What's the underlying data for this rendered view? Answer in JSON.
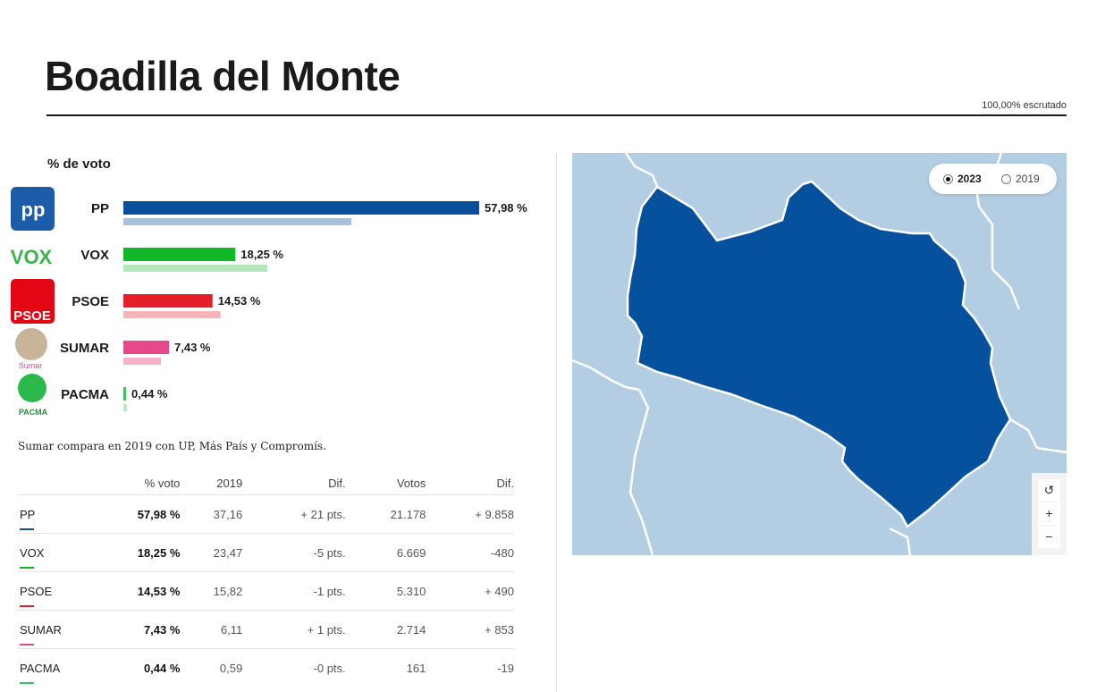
{
  "header": {
    "title": "Boadilla del Monte",
    "scrutiny": "100,00% escrutado"
  },
  "chart_data": {
    "type": "bar",
    "title": "% de voto",
    "categories": [
      "PP",
      "VOX",
      "PSOE",
      "SUMAR",
      "PACMA"
    ],
    "series": [
      {
        "name": "2023",
        "values": [
          57.98,
          18.25,
          14.53,
          7.43,
          0.44
        ]
      },
      {
        "name": "2019",
        "values": [
          37.16,
          23.47,
          15.82,
          6.11,
          0.59
        ]
      }
    ],
    "value_labels": [
      "57,98 %",
      "18,25 %",
      "14,53 %",
      "7,43 %",
      "0,44 %"
    ],
    "colors": [
      "#0b4f9c",
      "#11b92a",
      "#e41e2b",
      "#e7478b",
      "#3fc15a"
    ],
    "colors_2019": [
      "#a9c0dd",
      "#b4e8bb",
      "#f5b4b8",
      "#f4b2cd",
      "#b8ecc2"
    ],
    "logos": {
      "PP": "pp-logo",
      "VOX": "vox-logo",
      "PSOE": "psoe-logo",
      "SUMAR": "sumar-logo",
      "PACMA": "pacma-logo"
    },
    "logo_text": {
      "vox": "VOX",
      "psoe": "PSOE",
      "sumar": "Sumar",
      "pacma": "PACMA"
    }
  },
  "note": "Sumar compara en 2019 con UP, Más País y Compromís.",
  "table": {
    "headers": [
      "",
      "% voto",
      "2019",
      "Dif.",
      "Votos",
      "Dif."
    ],
    "rows": [
      {
        "party": "PP",
        "pct": "57,98 %",
        "prev": "37,16",
        "dif": "+ 21 pts.",
        "dif_sign": "pos",
        "votes": "21.178",
        "vdif": "+ 9.858",
        "color": "#0b4f9c"
      },
      {
        "party": "VOX",
        "pct": "18,25 %",
        "prev": "23,47",
        "dif": "-5 pts.",
        "dif_sign": "neg",
        "votes": "6.669",
        "vdif": "-480",
        "color": "#11b92a"
      },
      {
        "party": "PSOE",
        "pct": "14,53 %",
        "prev": "15,82",
        "dif": "-1 pts.",
        "dif_sign": "neg",
        "votes": "5.310",
        "vdif": "+ 490",
        "color": "#e41e2b"
      },
      {
        "party": "SUMAR",
        "pct": "7,43 %",
        "prev": "6,11",
        "dif": "+ 1 pts.",
        "dif_sign": "pos",
        "votes": "2.714",
        "vdif": "+ 853",
        "color": "#e7478b"
      },
      {
        "party": "PACMA",
        "pct": "0,44 %",
        "prev": "0,59",
        "dif": "-0 pts.",
        "dif_sign": "neg",
        "votes": "161",
        "vdif": "-19",
        "color": "#3fc15a"
      }
    ]
  },
  "map": {
    "years": [
      "2023",
      "2019"
    ],
    "selected_year": "2023",
    "municipality_color": "#05519e",
    "background_color": "#b3cde2",
    "zoom": {
      "reset": "↺",
      "in": "+",
      "out": "−"
    }
  }
}
